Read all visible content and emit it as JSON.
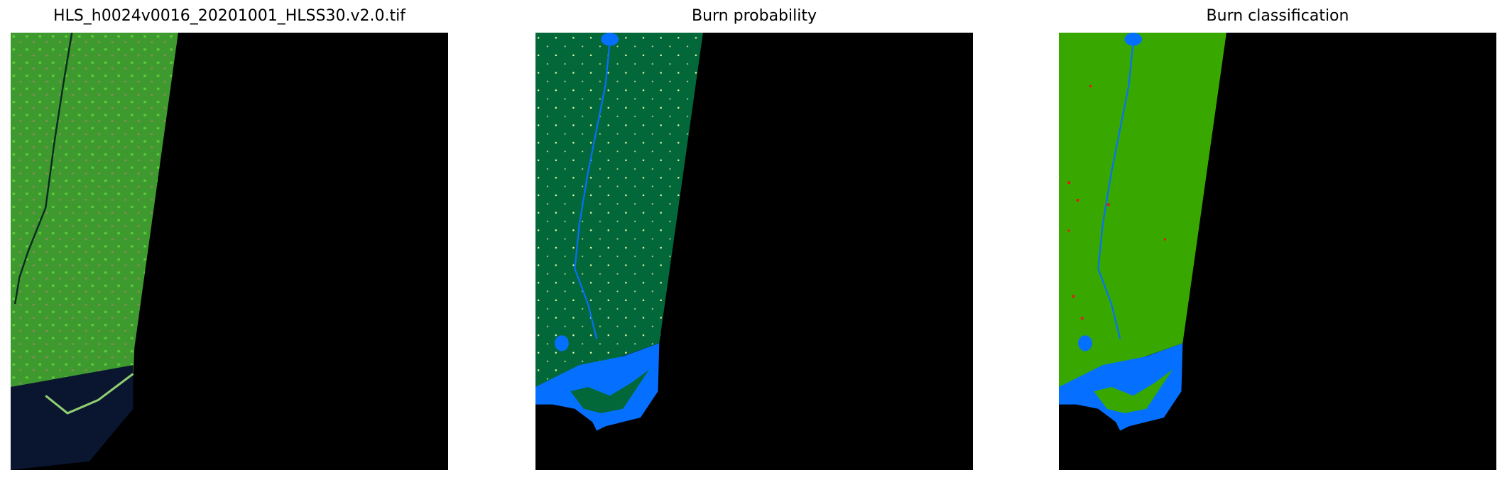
{
  "panels": [
    {
      "title": "HLS_h0024v0016_20201001_HLSS30.v2.0.tif",
      "kind": "RGB satellite image"
    },
    {
      "title": "Burn probability"
    },
    {
      "title": "Burn classification"
    }
  ],
  "colors": {
    "background_nodata": "#000000",
    "rgb_land": "#3e9a2e",
    "rgb_water": "#0a1530",
    "probability_land": "#02683a",
    "probability_water": "#0570ff",
    "classification_land": "#38a800",
    "classification_water": "#0570ff",
    "burn_marks": "#e31a1c",
    "probability_highlights": "#ffffb2"
  }
}
